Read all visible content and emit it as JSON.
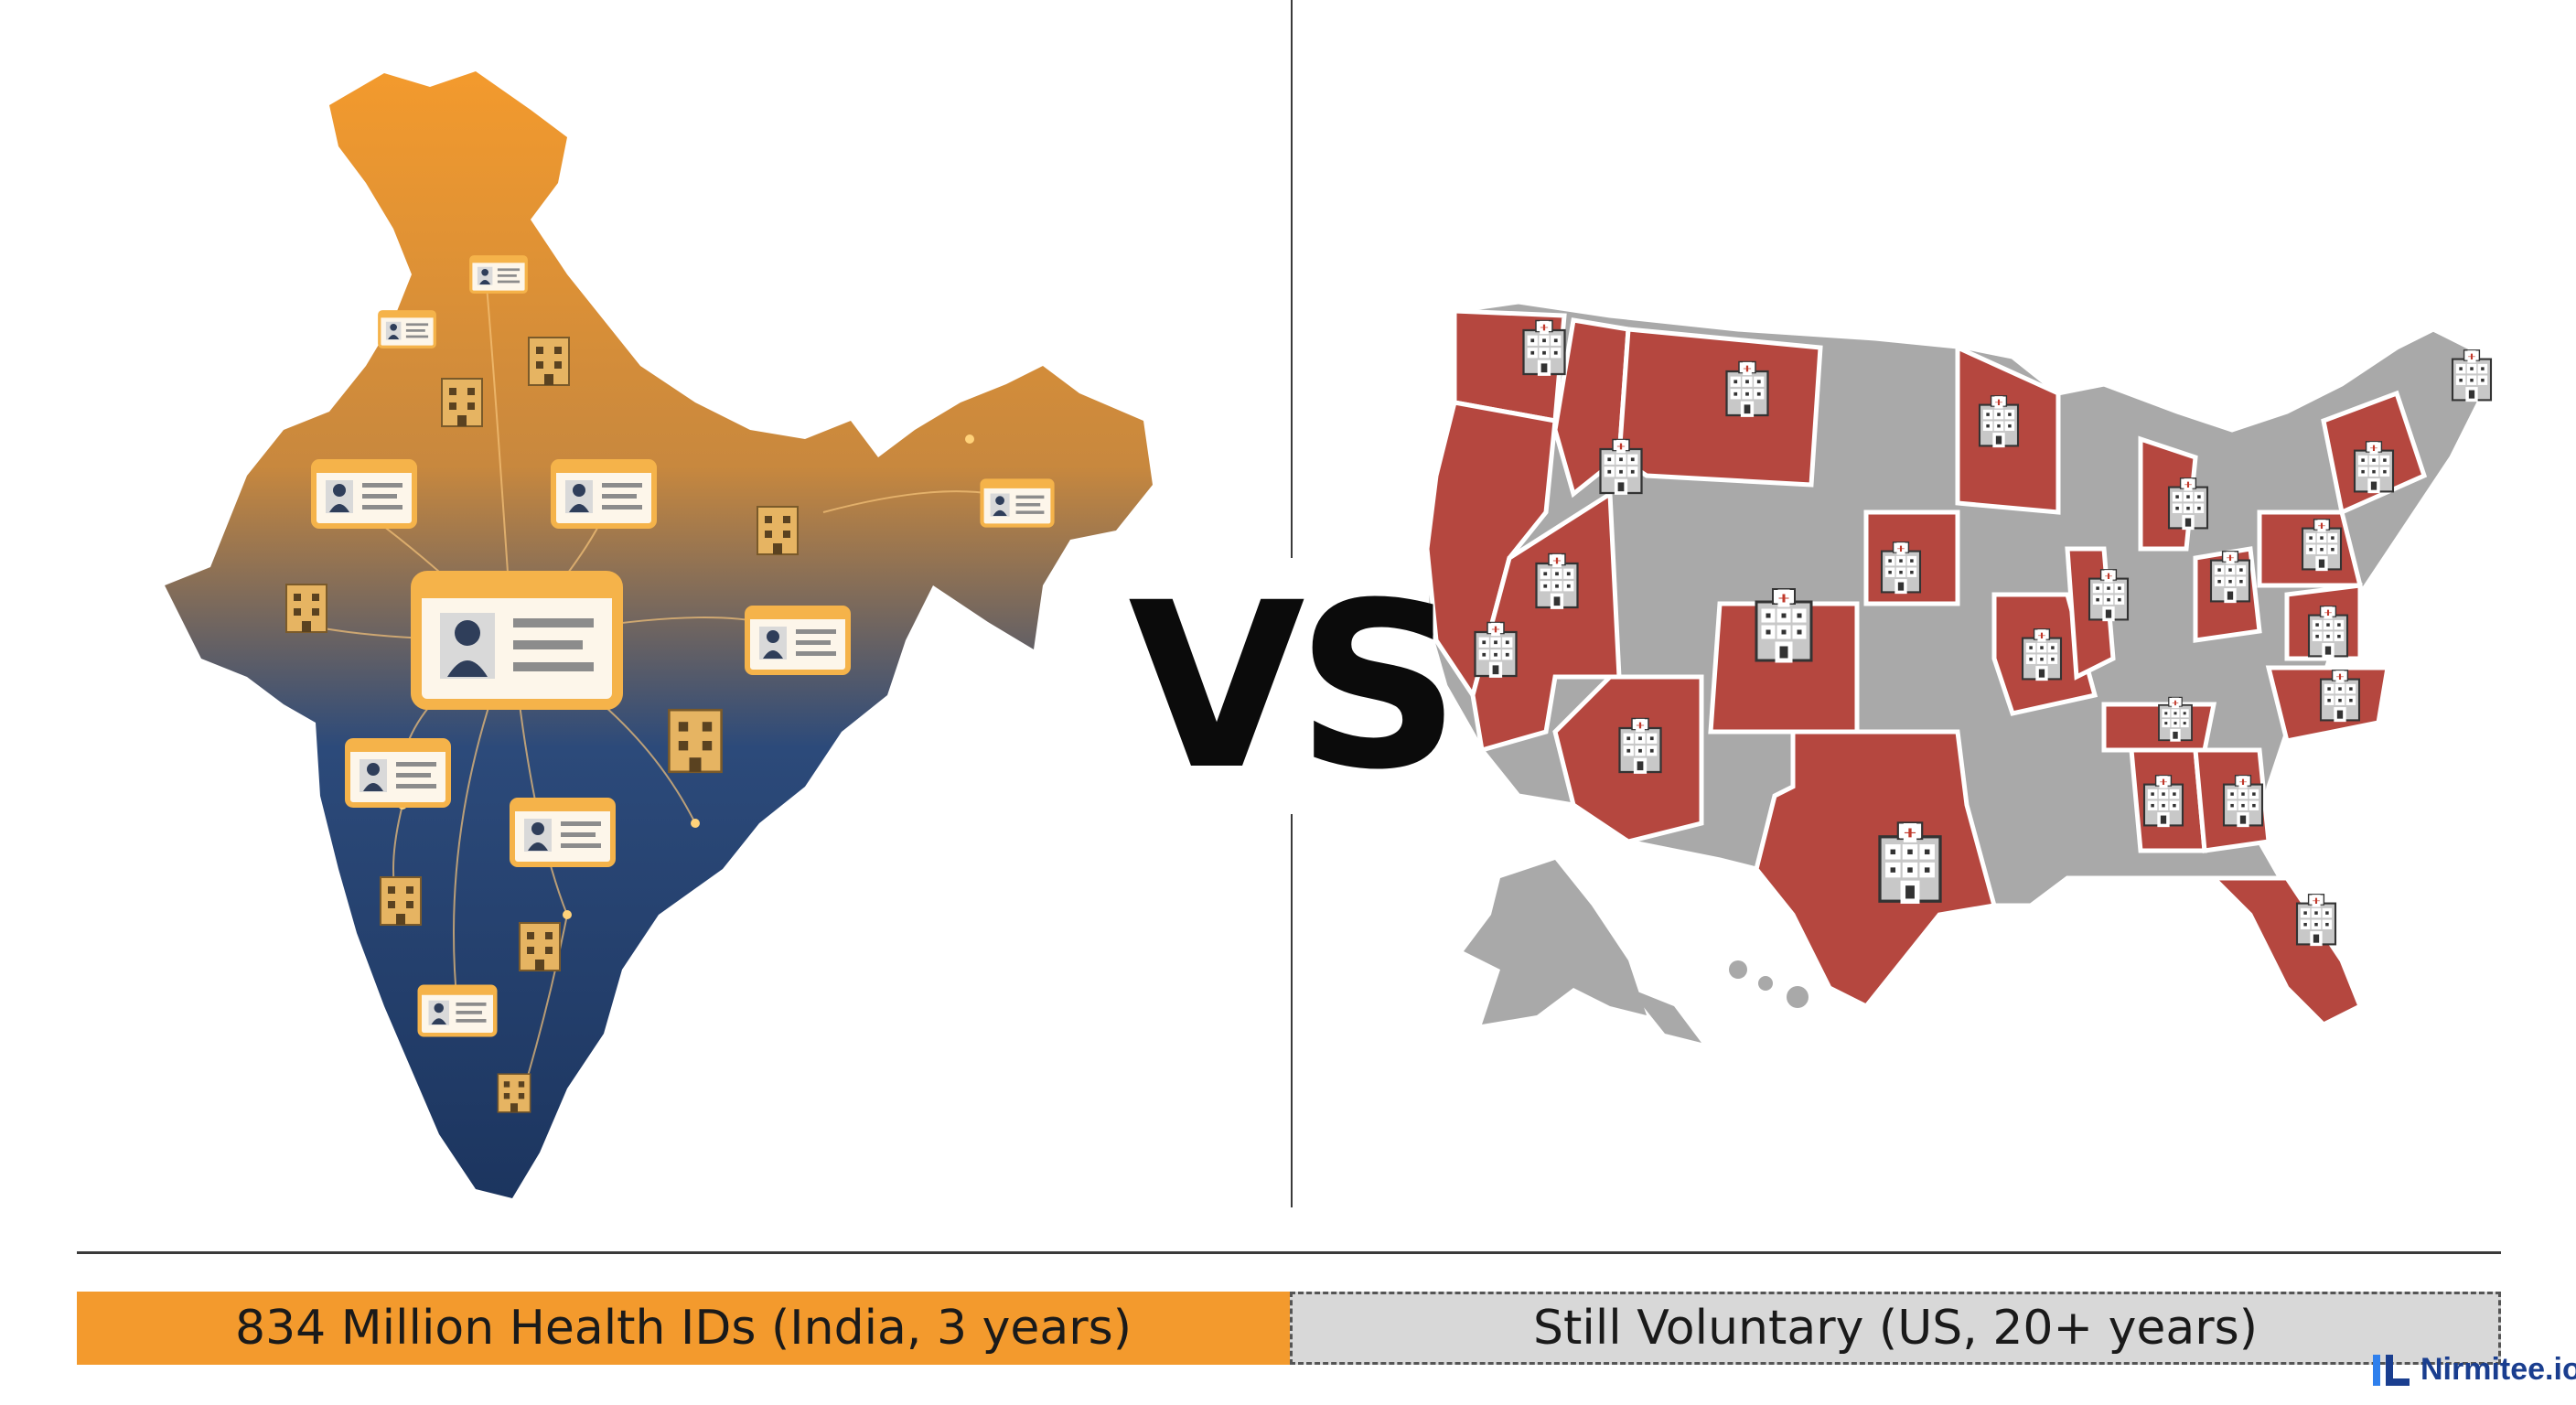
{
  "headline": "VS",
  "india": {
    "bar_label": "834 Million Health IDs (India, 3 years)",
    "colors": {
      "top": "#f39a2d",
      "bottom": "#1f3a6b",
      "cards": "#f5b34a",
      "hospitals": "#e6b462"
    },
    "icon_names": [
      "health-id-card-icon",
      "hospital-icon",
      "network-lines"
    ]
  },
  "us": {
    "bar_label": "Still Voluntary (US, 20+ years)",
    "colors": {
      "adopted": "#b5473f",
      "not_adopted": "#a9a9a9"
    },
    "icon_names": [
      "hospital-icon",
      "puzzle-piece-state"
    ]
  },
  "brand": {
    "name": "Nirmitee.io",
    "color": "#1a3e8f"
  }
}
